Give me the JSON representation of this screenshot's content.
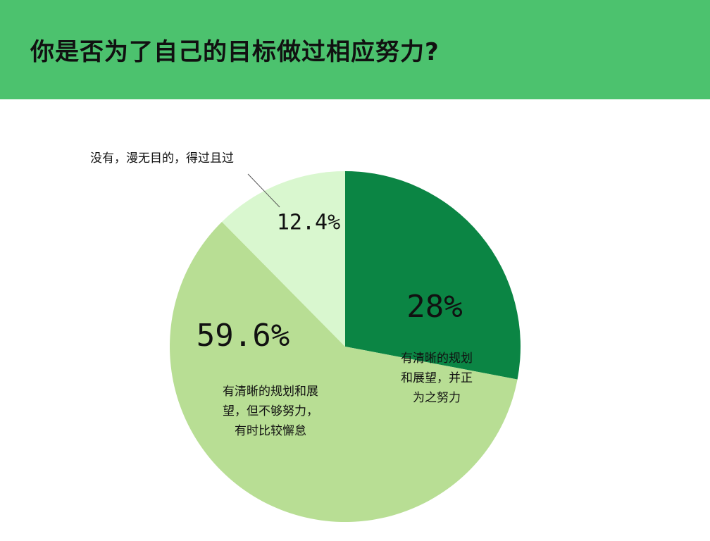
{
  "header": {
    "title": "你是否为了自己的目标做过相应努力?"
  },
  "colors": {
    "header_bg": "#4cc26e",
    "slice_dark": "#0b8544",
    "slice_medium": "#b8de94",
    "slice_light": "#d9f7cf"
  },
  "chart_data": {
    "type": "pie",
    "title": "你是否为了自己的目标做过相应努力?",
    "slices": [
      {
        "value": 28,
        "value_label": "28%",
        "label_lines": [
          "有清晰的规划",
          "和展望，并正",
          "为之努力"
        ],
        "color": "#0b8544"
      },
      {
        "value": 59.6,
        "value_label": "59.6%",
        "label_lines": [
          "有清晰的规划和展",
          "望，但不够努力，",
          "有时比较懈怠"
        ],
        "color": "#b8de94"
      },
      {
        "value": 12.4,
        "value_label": "12.4%",
        "label_lines": [
          "没有，漫无目的，得过且过"
        ],
        "color": "#d9f7cf"
      }
    ]
  }
}
